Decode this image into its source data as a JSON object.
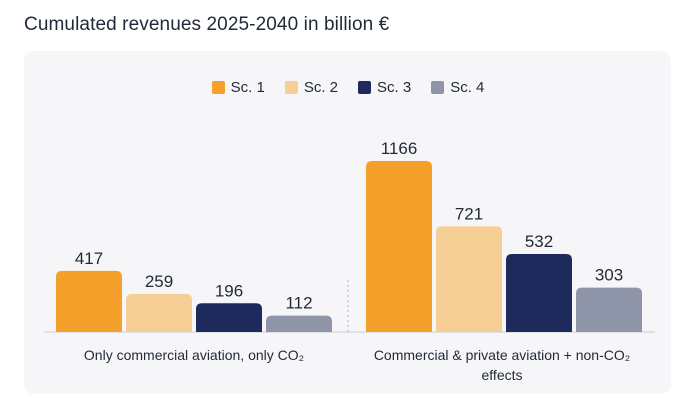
{
  "title": "Cumulated revenues 2025-2040 in billion €",
  "chart_data": {
    "type": "bar",
    "title": "Cumulated revenues 2025-2040 in billion €",
    "categories": [
      "Only commercial aviation, only CO₂",
      "Commercial & private aviation + non-CO₂ effects"
    ],
    "series": [
      {
        "name": "Sc. 1",
        "color": "#f4a02a",
        "values": [
          417,
          1166
        ]
      },
      {
        "name": "Sc. 2",
        "color": "#f6cf96",
        "values": [
          259,
          721
        ]
      },
      {
        "name": "Sc. 3",
        "color": "#1f2a5c",
        "values": [
          196,
          532
        ]
      },
      {
        "name": "Sc. 4",
        "color": "#8f95a8",
        "values": [
          112,
          303
        ]
      }
    ],
    "xlabel": "",
    "ylabel": "",
    "ylim": [
      0,
      1166
    ],
    "grid": false,
    "legend": "top-center"
  }
}
